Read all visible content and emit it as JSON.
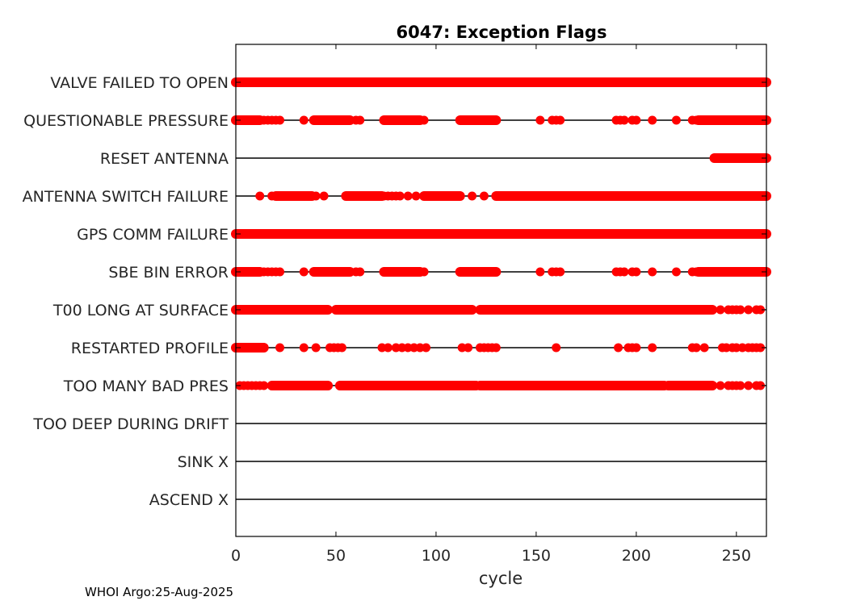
{
  "chart_data": {
    "type": "scatter",
    "title": "6047: Exception Flags",
    "xlabel": "cycle",
    "ylabel": "",
    "xlim": [
      0,
      265
    ],
    "x_ticks": [
      0,
      50,
      100,
      150,
      200,
      250
    ],
    "grid": false,
    "marker_color": "#ff0000",
    "line_color": "#000000",
    "categories": [
      "VALVE FAILED TO OPEN",
      "QUESTIONABLE PRESSURE",
      "RESET ANTENNA",
      "ANTENNA SWITCH FAILURE",
      "GPS COMM FAILURE",
      "SBE BIN ERROR",
      "T00 LONG AT SURFACE",
      "RESTARTED PROFILE",
      "TOO MANY BAD PRES",
      "TOO DEEP DURING DRIFT",
      "SINK X",
      "ASCEND X"
    ],
    "series": [
      {
        "name": "VALVE FAILED TO OPEN",
        "ranges": [
          [
            0,
            265
          ]
        ],
        "points": []
      },
      {
        "name": "QUESTIONABLE PRESSURE",
        "ranges": [
          [
            0,
            12
          ],
          [
            39,
            57
          ],
          [
            74,
            92
          ],
          [
            112,
            130
          ],
          [
            231,
            265
          ]
        ],
        "points": [
          14,
          16,
          18,
          20,
          22,
          34,
          60,
          62,
          76,
          78,
          94,
          114,
          116,
          120,
          126,
          152,
          158,
          160,
          162,
          190,
          192,
          194,
          198,
          200,
          208,
          220,
          228,
          230,
          234,
          236,
          238,
          240
        ]
      },
      {
        "name": "RESET ANTENNA",
        "ranges": [
          [
            239,
            265
          ]
        ],
        "points": []
      },
      {
        "name": "ANTENNA SWITCH FAILURE",
        "ranges": [
          [
            20,
            38
          ],
          [
            55,
            73
          ],
          [
            94,
            112
          ],
          [
            130,
            265
          ]
        ],
        "points": [
          12,
          18,
          40,
          44,
          74,
          76,
          78,
          80,
          82,
          86,
          90,
          118,
          124
        ]
      },
      {
        "name": "GPS COMM FAILURE",
        "ranges": [
          [
            0,
            265
          ]
        ],
        "points": []
      },
      {
        "name": "SBE BIN ERROR",
        "ranges": [
          [
            0,
            12
          ],
          [
            39,
            57
          ],
          [
            74,
            92
          ],
          [
            112,
            130
          ],
          [
            231,
            265
          ]
        ],
        "points": [
          14,
          16,
          18,
          20,
          22,
          34,
          60,
          62,
          76,
          78,
          94,
          114,
          116,
          120,
          126,
          152,
          158,
          160,
          162,
          190,
          192,
          194,
          198,
          200,
          208,
          220,
          228,
          230,
          234,
          236,
          238,
          240
        ]
      },
      {
        "name": "T00 LONG AT SURFACE",
        "ranges": [
          [
            0,
            46
          ],
          [
            50,
            118
          ],
          [
            122,
            238
          ]
        ],
        "points": [
          242,
          246,
          248,
          250,
          252,
          256,
          260,
          262
        ]
      },
      {
        "name": "RESTARTED PROFILE",
        "ranges": [
          [
            0,
            14
          ]
        ],
        "points": [
          22,
          34,
          40,
          47,
          49,
          51,
          53,
          73,
          76,
          80,
          83,
          86,
          89,
          92,
          95,
          113,
          116,
          122,
          124,
          126,
          128,
          130,
          160,
          191,
          196,
          198,
          200,
          208,
          228,
          230,
          234,
          243,
          245,
          248,
          250,
          253,
          256,
          258,
          260,
          262
        ]
      },
      {
        "name": "TOO MANY BAD PRES",
        "ranges": [
          [
            18,
            46
          ],
          [
            52,
            120
          ],
          [
            122,
            214
          ],
          [
            216,
            238
          ]
        ],
        "points": [
          2,
          4,
          6,
          8,
          10,
          12,
          14,
          242,
          246,
          248,
          250,
          252,
          256,
          260,
          262
        ]
      },
      {
        "name": "TOO DEEP DURING DRIFT",
        "ranges": [],
        "points": []
      },
      {
        "name": "SINK X",
        "ranges": [],
        "points": []
      },
      {
        "name": "ASCEND X",
        "ranges": [],
        "points": []
      }
    ]
  },
  "footer": {
    "note": "WHOI Argo:25-Aug-2025"
  }
}
